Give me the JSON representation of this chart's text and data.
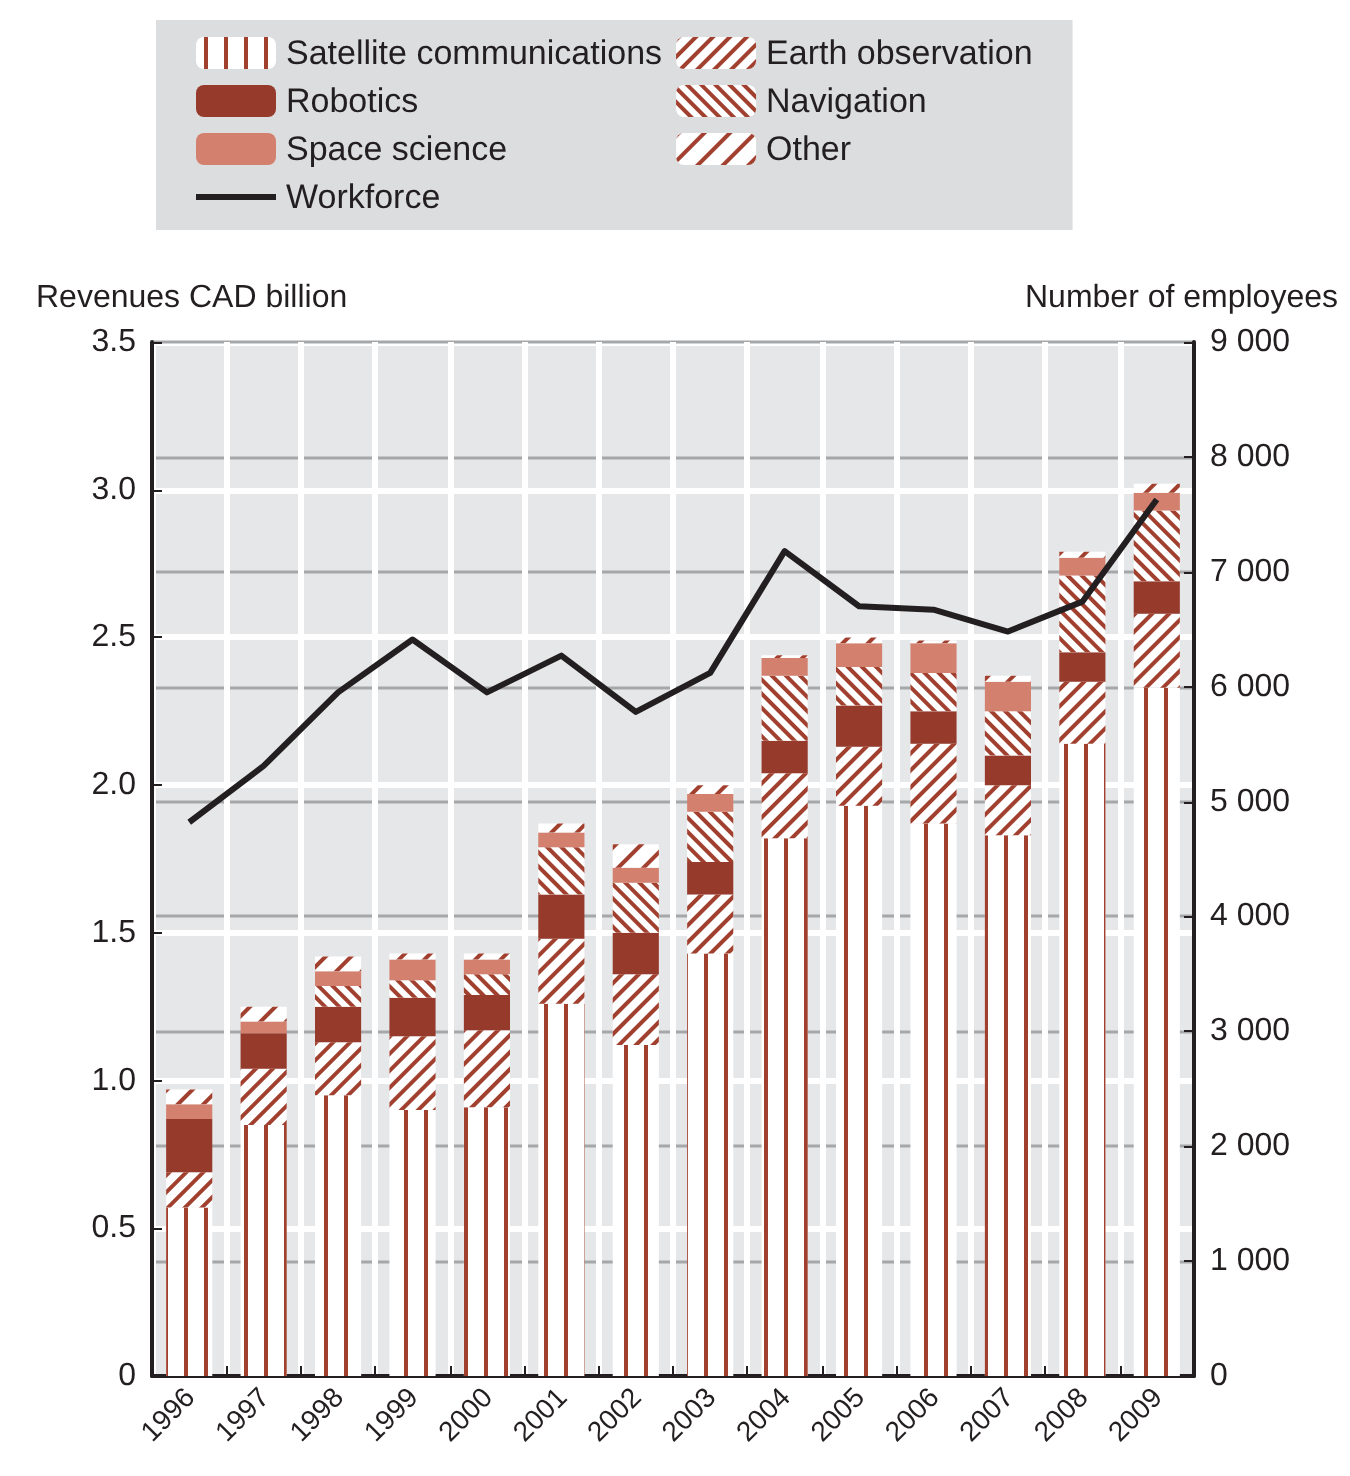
{
  "chart_data": {
    "type": "bar",
    "stacked": true,
    "ylabel": "Revenues CAD billion",
    "y2label": "Number of employees",
    "categories": [
      "1996",
      "1997",
      "1998",
      "1999",
      "2000",
      "2001",
      "2002",
      "2003",
      "2004",
      "2005",
      "2006",
      "2007",
      "2008",
      "2009"
    ],
    "series": [
      {
        "name": "Satellite communications",
        "color": "#a1402f",
        "values": [
          0.57,
          0.85,
          0.95,
          0.9,
          0.91,
          1.26,
          1.12,
          1.43,
          1.82,
          1.93,
          1.87,
          1.83,
          2.14,
          2.33
        ]
      },
      {
        "name": "Earth observation",
        "color": "#a1402f",
        "values": [
          0.12,
          0.19,
          0.18,
          0.25,
          0.26,
          0.22,
          0.24,
          0.2,
          0.22,
          0.2,
          0.27,
          0.17,
          0.21,
          0.25
        ]
      },
      {
        "name": "Robotics",
        "color": "#963a2c",
        "values": [
          0.18,
          0.12,
          0.12,
          0.13,
          0.12,
          0.15,
          0.14,
          0.11,
          0.11,
          0.14,
          0.11,
          0.1,
          0.1,
          0.11
        ]
      },
      {
        "name": "Navigation",
        "color": "#a1402f",
        "values": [
          0,
          0,
          0.07,
          0.06,
          0.07,
          0.16,
          0.17,
          0.17,
          0.22,
          0.13,
          0.13,
          0.15,
          0.26,
          0.24
        ]
      },
      {
        "name": "Space science",
        "color": "#d4806e",
        "values": [
          0.05,
          0.04,
          0.05,
          0.07,
          0.05,
          0.05,
          0.05,
          0.06,
          0.06,
          0.08,
          0.1,
          0.1,
          0.06,
          0.06
        ]
      },
      {
        "name": "Other",
        "color": "#a1402f",
        "values": [
          0.05,
          0.05,
          0.05,
          0.02,
          0.02,
          0.03,
          0.08,
          0.03,
          0.01,
          0.02,
          0.01,
          0.02,
          0.02,
          0.03
        ]
      },
      {
        "name": "Workforce",
        "type": "line",
        "axis": "y2",
        "color": "#231f20",
        "values": [
          4820,
          5310,
          5950,
          6410,
          5950,
          6270,
          5780,
          6120,
          7180,
          6700,
          6670,
          6480,
          6740,
          7630
        ]
      }
    ],
    "ylim": [
      0,
      3.5
    ],
    "yticks": [
      0,
      0.5,
      {
        "value": 1,
        "label": "1.0"
      },
      1.5,
      {
        "value": 2,
        "label": "2.0"
      },
      2.5,
      {
        "value": 3,
        "label": "3.0"
      },
      3.5
    ],
    "y2lim": [
      0,
      9000
    ],
    "y2ticks": [
      0,
      {
        "value": 1000,
        "label": "1 000"
      },
      {
        "value": 2000,
        "label": "2 000"
      },
      {
        "value": 3000,
        "label": "3 000"
      },
      {
        "value": 4000,
        "label": "4 000"
      },
      {
        "value": 5000,
        "label": "5 000"
      },
      {
        "value": 6000,
        "label": "6 000"
      },
      {
        "value": 7000,
        "label": "7 000"
      },
      {
        "value": 8000,
        "label": "8 000"
      },
      {
        "value": 9000,
        "label": "9 000"
      }
    ],
    "grid": true,
    "legend": "top",
    "marker": "none"
  }
}
